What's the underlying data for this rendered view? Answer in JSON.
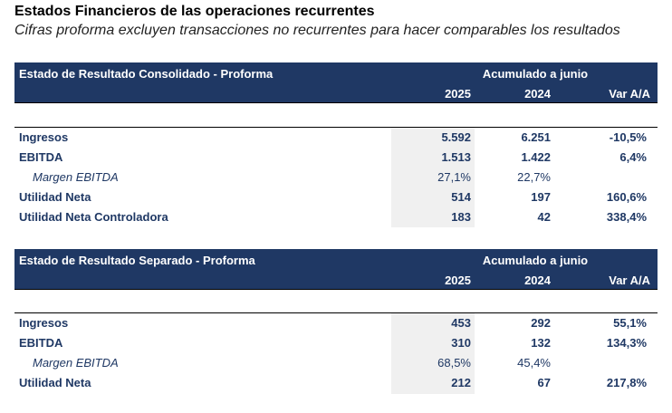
{
  "header": {
    "title": "Estados Financieros de las operaciones recurrentes",
    "subtitle": "Cifras proforma excluyen transacciones no recurrentes para hacer comparables los resultados"
  },
  "tables": [
    {
      "name": "Estado de Resultado Consolidado - Proforma",
      "period": "Acumulado a junio",
      "columns": [
        "2025",
        "2024",
        "Var A/A"
      ],
      "rows": [
        {
          "label": "Ingresos",
          "v2025": "5.592",
          "v2024": "6.251",
          "var": "-10,5%"
        },
        {
          "label": "EBITDA",
          "v2025": "1.513",
          "v2024": "1.422",
          "var": "6,4%"
        },
        {
          "label": "Margen EBITDA",
          "v2025": "27,1%",
          "v2024": "22,7%",
          "var": ""
        },
        {
          "label": "Utilidad Neta",
          "v2025": "514",
          "v2024": "197",
          "var": "160,6%"
        },
        {
          "label": "Utilidad Neta Controladora",
          "v2025": "183",
          "v2024": "42",
          "var": "338,4%"
        }
      ]
    },
    {
      "name": "Estado de Resultado Separado - Proforma",
      "period": "Acumulado a junio",
      "columns": [
        "2025",
        "2024",
        "Var A/A"
      ],
      "rows": [
        {
          "label": "Ingresos",
          "v2025": "453",
          "v2024": "292",
          "var": "55,1%"
        },
        {
          "label": "EBITDA",
          "v2025": "310",
          "v2024": "132",
          "var": "134,3%"
        },
        {
          "label": "Margen EBITDA",
          "v2025": "68,5%",
          "v2024": "45,4%",
          "var": ""
        },
        {
          "label": "Utilidad Neta",
          "v2025": "212",
          "v2024": "67",
          "var": "217,8%"
        }
      ]
    }
  ]
}
